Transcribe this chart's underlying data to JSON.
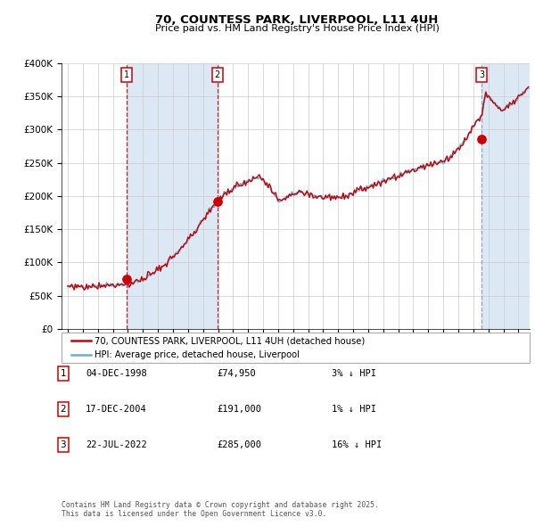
{
  "title_line1": "70, COUNTESS PARK, LIVERPOOL, L11 4UH",
  "title_line2": "Price paid vs. HM Land Registry's House Price Index (HPI)",
  "legend_label1": "70, COUNTESS PARK, LIVERPOOL, L11 4UH (detached house)",
  "legend_label2": "HPI: Average price, detached house, Liverpool",
  "sale_points": [
    {
      "date_year": 1998.92,
      "price": 74950,
      "label": "1",
      "vline_style": "red"
    },
    {
      "date_year": 2004.96,
      "price": 191000,
      "label": "2",
      "vline_style": "red"
    },
    {
      "date_year": 2022.55,
      "price": 285000,
      "label": "3",
      "vline_style": "blue"
    }
  ],
  "table_rows": [
    {
      "num": "1",
      "date": "04-DEC-1998",
      "price": "£74,950",
      "hpi_note": "3% ↓ HPI"
    },
    {
      "num": "2",
      "date": "17-DEC-2004",
      "price": "£191,000",
      "hpi_note": "1% ↓ HPI"
    },
    {
      "num": "3",
      "date": "22-JUL-2022",
      "price": "£285,000",
      "hpi_note": "16% ↓ HPI"
    }
  ],
  "footer": "Contains HM Land Registry data © Crown copyright and database right 2025.\nThis data is licensed under the Open Government Licence v3.0.",
  "ylim": [
    0,
    400000
  ],
  "yticks": [
    0,
    50000,
    100000,
    150000,
    200000,
    250000,
    300000,
    350000,
    400000
  ],
  "ytick_labels": [
    "£0",
    "£50K",
    "£100K",
    "£150K",
    "£200K",
    "£250K",
    "£300K",
    "£350K",
    "£400K"
  ],
  "xmin": 1994.58,
  "xmax": 2025.75,
  "shade_regions": [
    {
      "xmin": 1998.92,
      "xmax": 2004.96,
      "color": "#dce9f5"
    },
    {
      "xmin": 2022.55,
      "xmax": 2025.75,
      "color": "#dce9f5"
    }
  ],
  "hpi_line_color": "#6baed6",
  "price_line_color": "#cc0000",
  "marker_color": "#cc0000",
  "vline_red_color": "#cc0000",
  "vline_blue_color": "#8099bb",
  "background_color": "#ffffff",
  "grid_color": "#cccccc",
  "box_edge_color": "#cc0000",
  "title_fontsize": 9.5,
  "subtitle_fontsize": 8,
  "ytick_fontsize": 7.5,
  "xtick_fontsize": 6.5
}
